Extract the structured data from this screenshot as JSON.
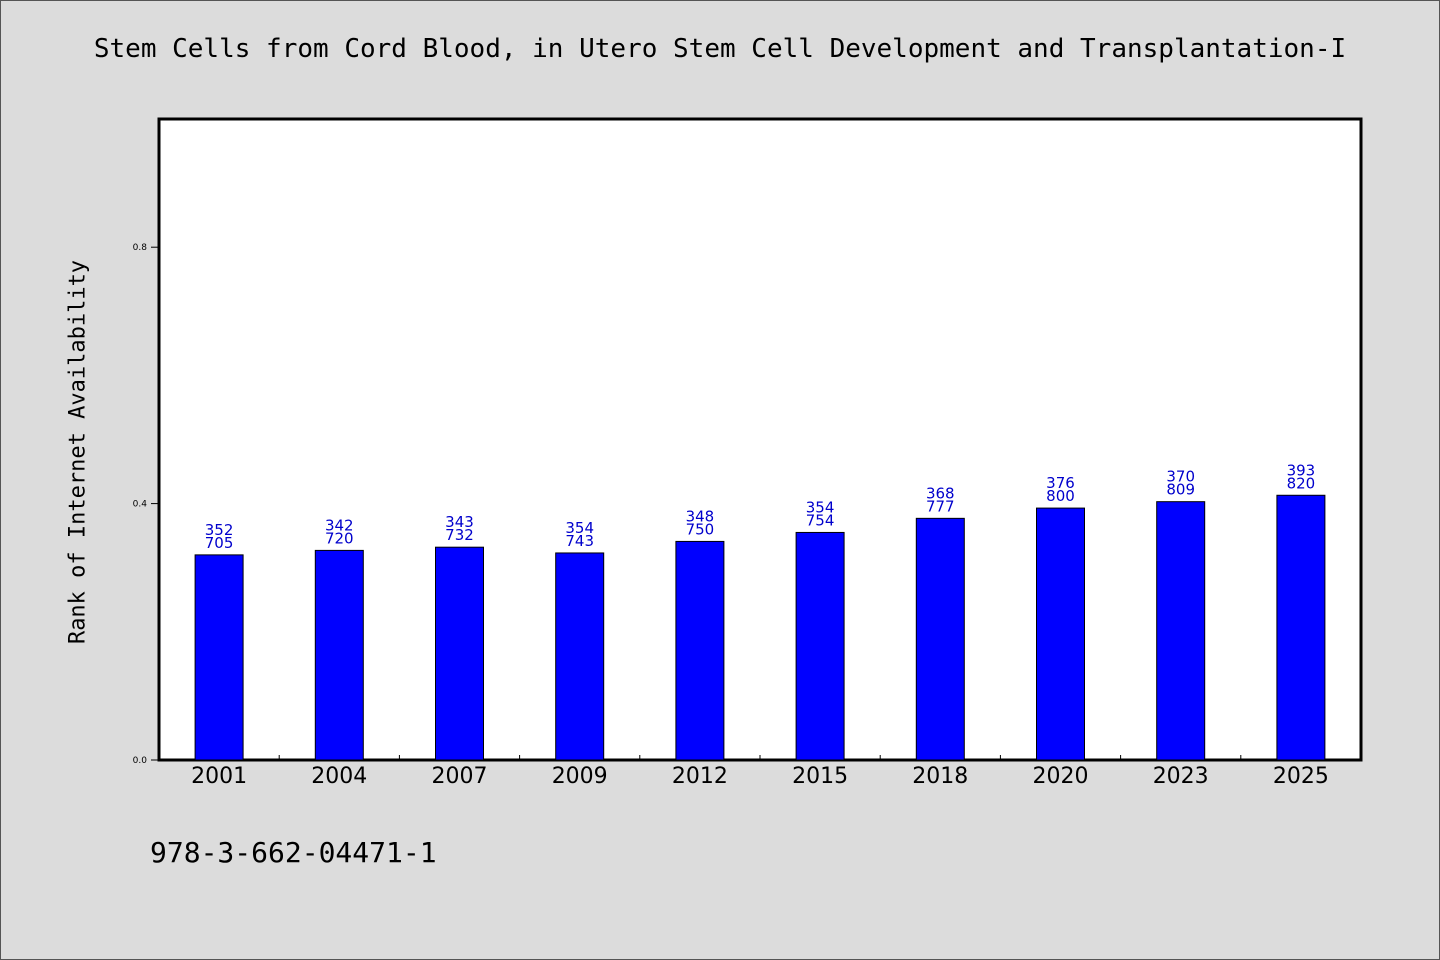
{
  "header": {
    "title": "Stem Cells from Cord Blood, in Utero Stem Cell Development and Transplantation-I",
    "isbn": "978-3-662-04471-1"
  },
  "chart_data": {
    "type": "bar",
    "title": "Stem Cells from Cord Blood, in Utero Stem Cell Development and Transplantation-I",
    "xlabel": "",
    "ylabel": "Rank of Internet Availability",
    "categories": [
      "2001",
      "2004",
      "2007",
      "2009",
      "2012",
      "2015",
      "2018",
      "2020",
      "2023",
      "2025"
    ],
    "values": [
      0.32,
      0.327,
      0.332,
      0.323,
      0.341,
      0.355,
      0.377,
      0.393,
      0.403,
      0.413
    ],
    "data_labels": [
      [
        "352",
        "705"
      ],
      [
        "342",
        "720"
      ],
      [
        "343",
        "732"
      ],
      [
        "354",
        "743"
      ],
      [
        "348",
        "750"
      ],
      [
        "354",
        "754"
      ],
      [
        "368",
        "777"
      ],
      [
        "376",
        "800"
      ],
      [
        "370",
        "809"
      ],
      [
        "393",
        "820"
      ]
    ],
    "ylim": [
      0,
      1.0
    ],
    "yticks": [
      "0.0",
      "0.4",
      "0.8"
    ],
    "bar_color": "#0000ff",
    "label_color": "#0000cc",
    "grid": false,
    "legend": "none"
  }
}
